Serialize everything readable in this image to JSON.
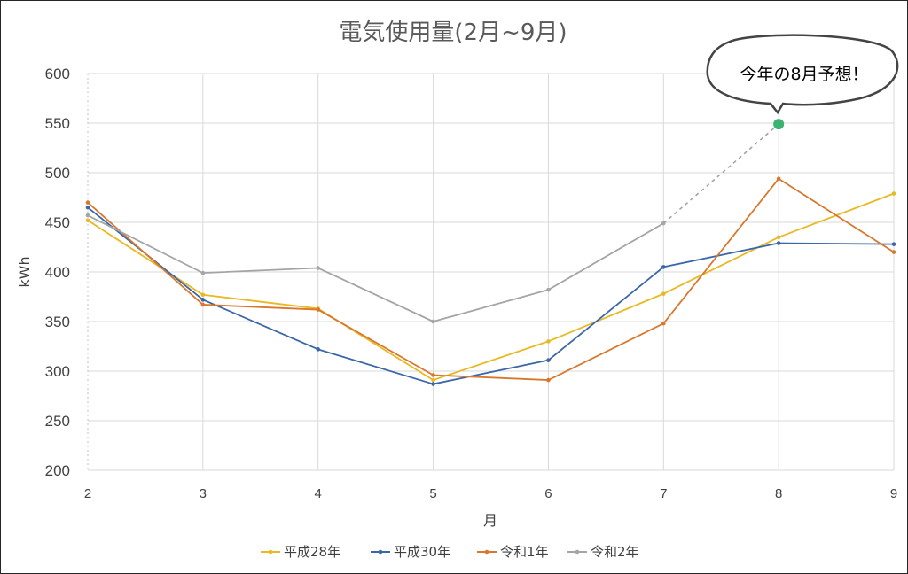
{
  "chart_data": {
    "type": "line",
    "title": "電気使用量(2月~9月)",
    "xlabel": "月",
    "ylabel": "kWh",
    "x": [
      2,
      3,
      4,
      5,
      6,
      7,
      8,
      9
    ],
    "ylim": [
      200,
      600
    ],
    "yticks": [
      200,
      250,
      300,
      350,
      400,
      450,
      500,
      550,
      600
    ],
    "grid": true,
    "legend_position": "bottom",
    "series": [
      {
        "name": "平成28年",
        "color": "#e8b923",
        "values": [
          452,
          377,
          363,
          291,
          330,
          378,
          435,
          479
        ]
      },
      {
        "name": "平成30年",
        "color": "#3b67a8",
        "values": [
          465,
          372,
          322,
          287,
          311,
          405,
          429,
          428
        ]
      },
      {
        "name": "令和1年",
        "color": "#d9782d",
        "values": [
          470,
          367,
          362,
          296,
          291,
          348,
          494,
          420
        ]
      },
      {
        "name": "令和2年",
        "color": "#a5a5a5",
        "values": [
          457,
          399,
          404,
          350,
          382,
          449,
          null,
          null
        ]
      }
    ],
    "forecast": {
      "x": 8,
      "value": 549,
      "from_x": 7,
      "from_value": 449,
      "color": "#3cb371",
      "line_color": "#a5a5a5"
    },
    "annotation": "今年の8月予想！"
  }
}
